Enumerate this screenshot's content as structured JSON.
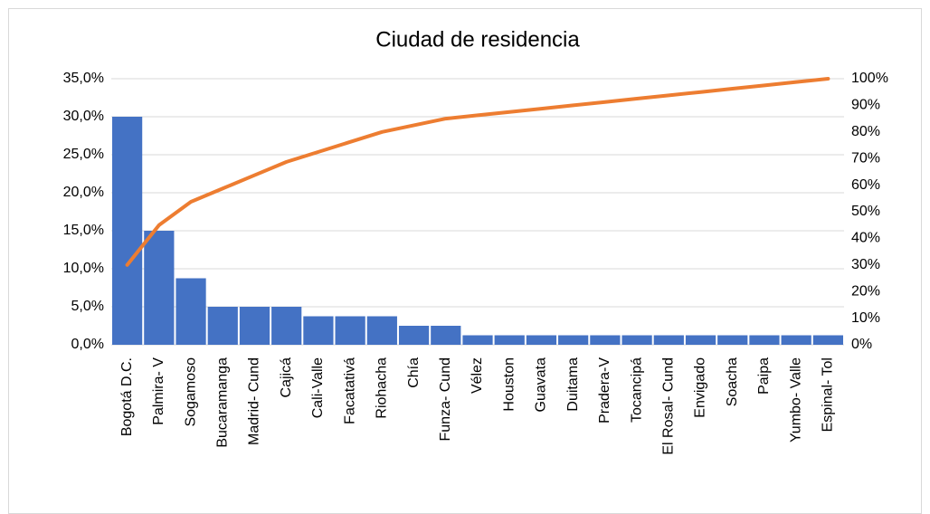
{
  "chart_data": {
    "type": "pareto",
    "title": "Ciudad de residencia",
    "categories": [
      "Bogotá D.C.",
      "Palmira- V",
      "Sogamoso",
      "Bucaramanga",
      "Madrid- Cund",
      "Cajicá",
      "Cali-Valle",
      "Facatativá",
      "Riohacha",
      "Chía",
      "Funza- Cund",
      "Vélez",
      "Houston",
      "Guavata",
      "Duitama",
      "Pradera-V",
      "Tocancipá",
      "El Rosal- Cund",
      "Envigado",
      "Soacha",
      "Paipa",
      "Yumbo- Valle",
      "Espinal- Tol"
    ],
    "series": [
      {
        "type": "bar",
        "color": "#4472c4",
        "values": [
          30,
          15,
          8.75,
          5,
          5,
          5,
          3.75,
          3.75,
          3.75,
          2.5,
          2.5,
          1.25,
          1.25,
          1.25,
          1.25,
          1.25,
          1.25,
          1.25,
          1.25,
          1.25,
          1.25,
          1.25,
          1.25
        ]
      },
      {
        "type": "line",
        "axis": "y2",
        "color": "#ed7d31",
        "values": [
          30,
          45,
          53.75,
          58.75,
          63.75,
          68.75,
          72.5,
          76.25,
          80,
          82.5,
          85,
          86.25,
          87.5,
          88.75,
          90,
          91.25,
          92.5,
          93.75,
          95,
          96.25,
          97.5,
          98.75,
          100
        ]
      }
    ],
    "ylim": [
      0,
      35
    ],
    "yticks": [
      {
        "value": 0,
        "label": "0,0%"
      },
      {
        "value": 5,
        "label": "5,0%"
      },
      {
        "value": 10,
        "label": "10,0%"
      },
      {
        "value": 15,
        "label": "15,0%"
      },
      {
        "value": 20,
        "label": "20,0%"
      },
      {
        "value": 25,
        "label": "25,0%"
      },
      {
        "value": 30,
        "label": "30,0%"
      },
      {
        "value": 35,
        "label": "35,0%"
      }
    ],
    "y2lim": [
      0,
      100
    ],
    "y2ticks": [
      {
        "value": 0,
        "label": "0%"
      },
      {
        "value": 10,
        "label": "10%"
      },
      {
        "value": 20,
        "label": "20%"
      },
      {
        "value": 30,
        "label": "30%"
      },
      {
        "value": 40,
        "label": "40%"
      },
      {
        "value": 50,
        "label": "50%"
      },
      {
        "value": 60,
        "label": "60%"
      },
      {
        "value": 70,
        "label": "70%"
      },
      {
        "value": 80,
        "label": "80%"
      },
      {
        "value": 90,
        "label": "90%"
      },
      {
        "value": 100,
        "label": "100%"
      }
    ],
    "grid": true
  }
}
